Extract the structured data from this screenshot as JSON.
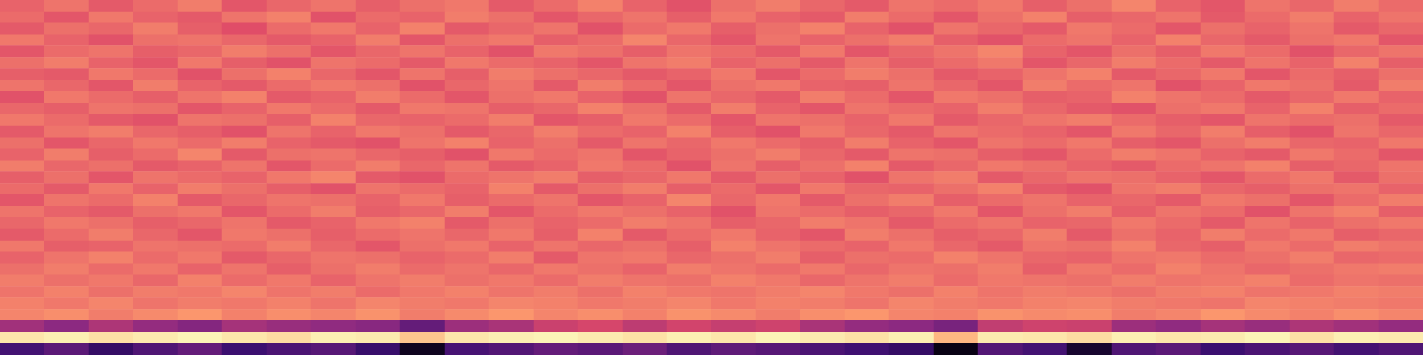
{
  "chart_data": {
    "type": "heatmap",
    "tick_labels": false,
    "grid": false,
    "zlim": [
      0,
      100
    ],
    "cells": [
      [
        66,
        70,
        64,
        68,
        72,
        63,
        67,
        70,
        65,
        69,
        71,
        64,
        68,
        73,
        66,
        62,
        69,
        72,
        67,
        64,
        70,
        68,
        71,
        65,
        69,
        74,
        66,
        63,
        70,
        67,
        72,
        68
      ],
      [
        68,
        63,
        71,
        66,
        64,
        70,
        73,
        62,
        68,
        66,
        72,
        69,
        63,
        67,
        70,
        65,
        71,
        66,
        64,
        72,
        68,
        63,
        69,
        73,
        65,
        67,
        70,
        64,
        68,
        72,
        66,
        70
      ],
      [
        64,
        69,
        67,
        72,
        65,
        61,
        68,
        71,
        66,
        73,
        64,
        67,
        70,
        62,
        68,
        71,
        65,
        69,
        73,
        66,
        62,
        70,
        67,
        64,
        71,
        68,
        63,
        69,
        66,
        70,
        64,
        67
      ],
      [
        71,
        66,
        62,
        69,
        70,
        67,
        64,
        66,
        72,
        63,
        69,
        71,
        65,
        68,
        74,
        67,
        63,
        70,
        66,
        69,
        72,
        65,
        62,
        68,
        70,
        66,
        73,
        67,
        64,
        69,
        71,
        63
      ],
      [
        63,
        68,
        70,
        65,
        67,
        72,
        69,
        63,
        67,
        70,
        66,
        62,
        71,
        69,
        65,
        70,
        68,
        64,
        71,
        63,
        67,
        70,
        74,
        66,
        63,
        69,
        65,
        71,
        68,
        62,
        67,
        70
      ],
      [
        69,
        72,
        66,
        63,
        71,
        65,
        62,
        70,
        68,
        64,
        71,
        68,
        66,
        63,
        70,
        72,
        66,
        69,
        64,
        70,
        65,
        68,
        71,
        63,
        67,
        72,
        68,
        64,
        70,
        66,
        73,
        65
      ],
      [
        65,
        64,
        71,
        68,
        62,
        69,
        73,
        67,
        63,
        70,
        65,
        72,
        69,
        67,
        64,
        66,
        71,
        63,
        68,
        72,
        69,
        64,
        66,
        70,
        73,
        64,
        67,
        71,
        63,
        68,
        65,
        69
      ],
      [
        70,
        67,
        63,
        72,
        66,
        64,
        68,
        71,
        69,
        62,
        67,
        70,
        64,
        72,
        68,
        63,
        69,
        71,
        66,
        65,
        70,
        67,
        63,
        72,
        68,
        70,
        62,
        66,
        71,
        69,
        64,
        72
      ],
      [
        62,
        71,
        68,
        65,
        70,
        73,
        64,
        66,
        72,
        68,
        63,
        69,
        71,
        66,
        62,
        70,
        67,
        64,
        72,
        68,
        63,
        71,
        69,
        65,
        66,
        73,
        70,
        68,
        64,
        67,
        71,
        66
      ],
      [
        67,
        65,
        70,
        69,
        63,
        66,
        71,
        68,
        64,
        71,
        70,
        65,
        67,
        73,
        69,
        64,
        72,
        66,
        63,
        70,
        68,
        66,
        72,
        67,
        64,
        62,
        69,
        71,
        66,
        73,
        65,
        68
      ],
      [
        71,
        68,
        64,
        62,
        70,
        69,
        65,
        73,
        67,
        66,
        68,
        72,
        63,
        65,
        71,
        68,
        63,
        70,
        69,
        66,
        71,
        64,
        67,
        70,
        72,
        68,
        65,
        63,
        70,
        68,
        69,
        64
      ],
      [
        64,
        70,
        72,
        67,
        65,
        62,
        70,
        66,
        71,
        69,
        64,
        67,
        72,
        68,
        66,
        73,
        65,
        62,
        71,
        67,
        64,
        70,
        68,
        66,
        63,
        71,
        67,
        72,
        65,
        62,
        70,
        67
      ],
      [
        69,
        63,
        67,
        71,
        68,
        72,
        66,
        64,
        62,
        70,
        73,
        66,
        69,
        64,
        70,
        67,
        71,
        68,
        65,
        72,
        66,
        63,
        70,
        68,
        71,
        65,
        63,
        69,
        72,
        67,
        66,
        71
      ],
      [
        66,
        72,
        65,
        68,
        74,
        64,
        69,
        70,
        67,
        65,
        62,
        71,
        68,
        70,
        63,
        66,
        69,
        72,
        67,
        64,
        70,
        69,
        65,
        63,
        68,
        72,
        70,
        66,
        64,
        71,
        68,
        63
      ],
      [
        72,
        67,
        69,
        64,
        66,
        70,
        63,
        68,
        72,
        67,
        70,
        64,
        66,
        71,
        68,
        62,
        70,
        65,
        69,
        73,
        64,
        67,
        71,
        69,
        66,
        64,
        68,
        70,
        73,
        65,
        67,
        70
      ],
      [
        65,
        69,
        63,
        70,
        68,
        66,
        71,
        74,
        64,
        62,
        68,
        70,
        72,
        65,
        67,
        71,
        64,
        69,
        66,
        62,
        70,
        72,
        64,
        67,
        70,
        69,
        66,
        63,
        68,
        71,
        64,
        69
      ],
      [
        68,
        64,
        71,
        66,
        72,
        69,
        65,
        62,
        70,
        68,
        66,
        73,
        64,
        69,
        72,
        65,
        68,
        63,
        71,
        67,
        66,
        69,
        73,
        64,
        62,
        70,
        72,
        67,
        65,
        69,
        70,
        66
      ],
      [
        63,
        70,
        68,
        73,
        64,
        67,
        70,
        69,
        66,
        71,
        65,
        68,
        70,
        63,
        66,
        74,
        67,
        71,
        64,
        69,
        72,
        65,
        68,
        70,
        66,
        67,
        64,
        71,
        69,
        63,
        68,
        72
      ],
      [
        70,
        66,
        64,
        69,
        71,
        63,
        68,
        72,
        65,
        67,
        72,
        63,
        68,
        71,
        69,
        66,
        62,
        70,
        68,
        65,
        67,
        71,
        63,
        69,
        72,
        65,
        70,
        68,
        62,
        70,
        73,
        65
      ],
      [
        67,
        71,
        69,
        65,
        67,
        70,
        64,
        66,
        71,
        73,
        64,
        69,
        66,
        68,
        72,
        70,
        65,
        67,
        72,
        70,
        64,
        68,
        70,
        66,
        67,
        71,
        68,
        64,
        70,
        66,
        69,
        71
      ],
      [
        64,
        68,
        72,
        67,
        63,
        71,
        69,
        65,
        68,
        70,
        67,
        71,
        65,
        73,
        64,
        68,
        71,
        66,
        63,
        72,
        69,
        65,
        67,
        72,
        64,
        69,
        66,
        72,
        68,
        71,
        65,
        67
      ],
      [
        71,
        65,
        66,
        70,
        69,
        68,
        72,
        67,
        63,
        69,
        71,
        66,
        70,
        67,
        69,
        65,
        73,
        70,
        68,
        66,
        71,
        67,
        64,
        70,
        69,
        73,
        67,
        65,
        71,
        68,
        72,
        70
      ],
      [
        66,
        70,
        73,
        68,
        71,
        64,
        67,
        70,
        69,
        66,
        68,
        72,
        64,
        70,
        71,
        67,
        69,
        72,
        65,
        69,
        68,
        73,
        70,
        67,
        66,
        70,
        71,
        68,
        69,
        72,
        67,
        68
      ],
      [
        69,
        72,
        68,
        71,
        66,
        70,
        65,
        69,
        72,
        68,
        70,
        67,
        71,
        69,
        66,
        72,
        70,
        68,
        71,
        67,
        70,
        69,
        72,
        65,
        71,
        68,
        73,
        70,
        67,
        69,
        71,
        72
      ],
      [
        72,
        69,
        71,
        67,
        73,
        68,
        71,
        66,
        70,
        72,
        69,
        71,
        68,
        72,
        70,
        69,
        73,
        71,
        67,
        70,
        72,
        68,
        71,
        70,
        69,
        72,
        70,
        71,
        73,
        68,
        70,
        69
      ],
      [
        70,
        73,
        69,
        72,
        71,
        74,
        70,
        72,
        68,
        71,
        73,
        70,
        72,
        69,
        73,
        71,
        70,
        72,
        74,
        71,
        69,
        73,
        70,
        72,
        71,
        69,
        72,
        73,
        70,
        71,
        73,
        72
      ],
      [
        73,
        71,
        74,
        70,
        72,
        71,
        73,
        70,
        74,
        72,
        71,
        74,
        73,
        71,
        72,
        74,
        71,
        73,
        72,
        70,
        74,
        72,
        71,
        73,
        74,
        72,
        71,
        70,
        74,
        73,
        72,
        71
      ],
      [
        74,
        76,
        72,
        75,
        78,
        73,
        76,
        74,
        77,
        72,
        75,
        78,
        74,
        76,
        73,
        77,
        75,
        72,
        76,
        78,
        74,
        73,
        77,
        75,
        76,
        72,
        74,
        78,
        75,
        73,
        76,
        74
      ],
      [
        45,
        40,
        48,
        42,
        38,
        46,
        43,
        41,
        39,
        30,
        44,
        47,
        55,
        58,
        52,
        57,
        54,
        56,
        47,
        42,
        40,
        35,
        53,
        56,
        55,
        44,
        41,
        46,
        43,
        48,
        45,
        42
      ],
      [
        95,
        97,
        94,
        96,
        98,
        95,
        93,
        97,
        96,
        88,
        95,
        97,
        98,
        96,
        94,
        97,
        95,
        98,
        96,
        94,
        97,
        85,
        96,
        95,
        93,
        97,
        95,
        96,
        98,
        94,
        97,
        96
      ],
      [
        22,
        28,
        18,
        25,
        30,
        20,
        24,
        27,
        19,
        5,
        23,
        26,
        30,
        28,
        32,
        25,
        29,
        27,
        24,
        21,
        18,
        3,
        26,
        22,
        8,
        25,
        28,
        20,
        24,
        27,
        22,
        25
      ]
    ]
  }
}
